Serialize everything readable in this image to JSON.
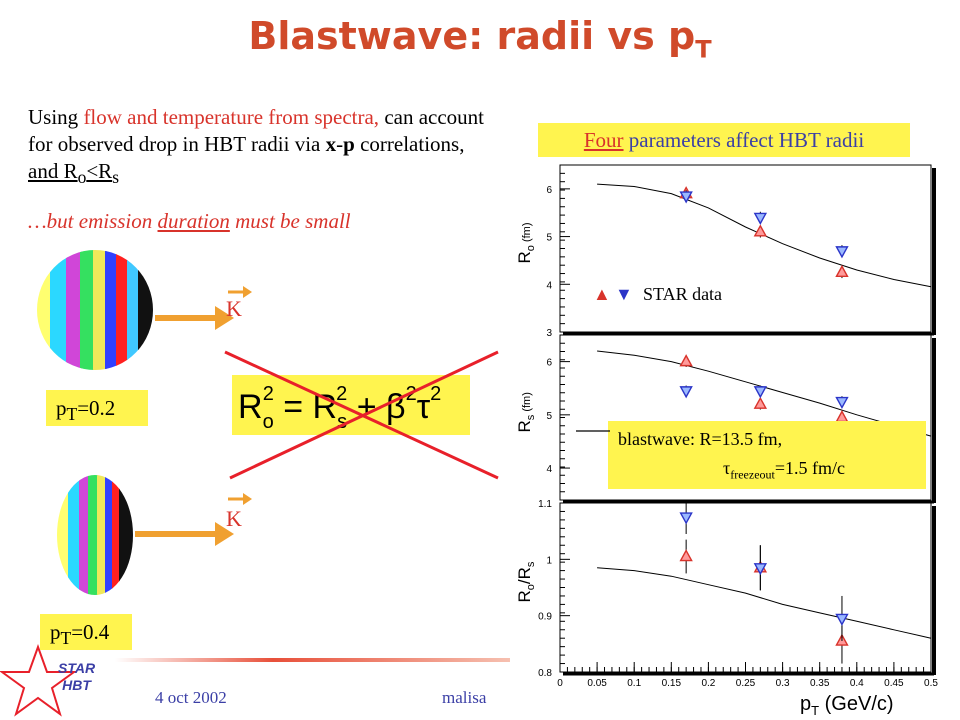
{
  "title": {
    "main": "Blastwave: radii vs p",
    "sub": "T"
  },
  "intro": {
    "p1_a": "Using ",
    "p1_b": "flow and temperature from spectra,",
    "p1_c": " can account for observed drop in HBT radii via ",
    "p1_x": "x",
    "p1_dash": "-",
    "p1_p": "p",
    "p1_d": " correlations, ",
    "p1_e": "and R",
    "p1_o": "o",
    "p1_lt": "<R",
    "p1_s": "s",
    "p2_a": "…but emission ",
    "p2_b": "duration",
    "p2_c": " must be small"
  },
  "four_box": {
    "a": "Four",
    "b": " parameters affect HBT radii"
  },
  "pt_labels": {
    "p": "p",
    "T": "T",
    "v1": "=0.2",
    "v2": "=0.4"
  },
  "k_label": "K",
  "formula": {
    "lhs": "R",
    "o": "o",
    "eq": " = R",
    "s": "s",
    "plus": " + β",
    "tau": "τ",
    "sq": "2"
  },
  "legend": {
    "text": "STAR data",
    "up_color": "#d8332b",
    "down_color": "#2b35c8"
  },
  "blastwave_box": {
    "l1": "blastwave: R=13.5 fm,",
    "tau": "τ",
    "sub": "freezeout",
    "l2": "=1.5 fm/c"
  },
  "footer": {
    "date": "4 oct 2002",
    "author": "malisa",
    "star1": "STAR",
    "star2": "HBT"
  },
  "colors": {
    "title": "#d04a2a",
    "accent_red": "#d8332b",
    "blue": "#3b3fa6",
    "box_yellow": "#fff44f",
    "arrow": "#f0a030"
  },
  "chart_data": [
    {
      "type": "scatter",
      "panel": "top",
      "ylabel": "R_o (fm)",
      "ylabel_main": "R",
      "ylabel_sub": "o",
      "ylabel_unit": " (fm)",
      "ylim": [
        3,
        6.5
      ],
      "yticks": [
        "3",
        "4",
        "5",
        "6"
      ],
      "series": [
        {
          "marker": "triangle-up",
          "x": [
            0.17,
            0.27,
            0.38
          ],
          "y": [
            5.9,
            5.1,
            4.25
          ],
          "err": [
            0.12,
            0.12,
            0.12
          ]
        },
        {
          "marker": "triangle-down",
          "x": [
            0.17,
            0.27,
            0.38
          ],
          "y": [
            5.85,
            5.4,
            4.7
          ],
          "err": [
            0.12,
            0.12,
            0.12
          ]
        }
      ],
      "curve": {
        "x": [
          0.05,
          0.1,
          0.15,
          0.2,
          0.25,
          0.3,
          0.35,
          0.4,
          0.45,
          0.5
        ],
        "y": [
          6.1,
          6.05,
          5.9,
          5.6,
          5.2,
          4.85,
          4.55,
          4.3,
          4.1,
          3.95
        ]
      }
    },
    {
      "type": "scatter",
      "panel": "middle",
      "ylabel": "R_s (fm)",
      "ylabel_main": "R",
      "ylabel_sub": "s",
      "ylabel_unit": " (fm)",
      "ylim": [
        3.4,
        6.5
      ],
      "yticks": [
        "4",
        "5",
        "6"
      ],
      "series": [
        {
          "marker": "triangle-up",
          "x": [
            0.17,
            0.27,
            0.38
          ],
          "y": [
            6.0,
            5.2,
            4.95
          ],
          "err": [
            0.1,
            0.1,
            0.1
          ]
        },
        {
          "marker": "triangle-down",
          "x": [
            0.17,
            0.27,
            0.38
          ],
          "y": [
            5.45,
            5.45,
            5.25
          ],
          "err": [
            0.1,
            0.1,
            0.1
          ]
        }
      ],
      "curve": {
        "x": [
          0.05,
          0.1,
          0.15,
          0.2,
          0.25,
          0.3,
          0.35,
          0.4,
          0.45,
          0.5
        ],
        "y": [
          6.2,
          6.12,
          6.0,
          5.82,
          5.62,
          5.42,
          5.22,
          5.0,
          4.8,
          4.6
        ]
      }
    },
    {
      "type": "scatter",
      "panel": "bottom",
      "ylabel": "R_o/R_s",
      "ylabel_main": "R",
      "ylabel_sub": "o",
      "ylabel_slash": "/R",
      "ylabel_sub2": "s",
      "xlabel": "p_T (GeV/c)",
      "xlabel_main": "p",
      "xlabel_sub": "T",
      "xlabel_unit": " (GeV/c)",
      "xlim": [
        0,
        0.5
      ],
      "xticks": [
        "0",
        "0.05",
        "0.1",
        "0.15",
        "0.2",
        "0.25",
        "0.3",
        "0.35",
        "0.4",
        "0.45",
        "0.5"
      ],
      "ylim": [
        0.8,
        1.1
      ],
      "yticks": [
        "0.8",
        "0.9",
        "1",
        "1.1"
      ],
      "series": [
        {
          "marker": "triangle-up",
          "x": [
            0.17,
            0.27,
            0.38
          ],
          "y": [
            1.005,
            0.985,
            0.855
          ],
          "err": [
            0.03,
            0.04,
            0.04
          ]
        },
        {
          "marker": "triangle-down",
          "x": [
            0.17,
            0.27,
            0.38
          ],
          "y": [
            1.075,
            0.985,
            0.895
          ],
          "err": [
            0.03,
            0.04,
            0.04
          ]
        }
      ],
      "curve": {
        "x": [
          0.05,
          0.1,
          0.15,
          0.2,
          0.25,
          0.3,
          0.35,
          0.4,
          0.45,
          0.5
        ],
        "y": [
          0.985,
          0.98,
          0.97,
          0.955,
          0.94,
          0.92,
          0.905,
          0.89,
          0.875,
          0.86
        ]
      }
    }
  ]
}
